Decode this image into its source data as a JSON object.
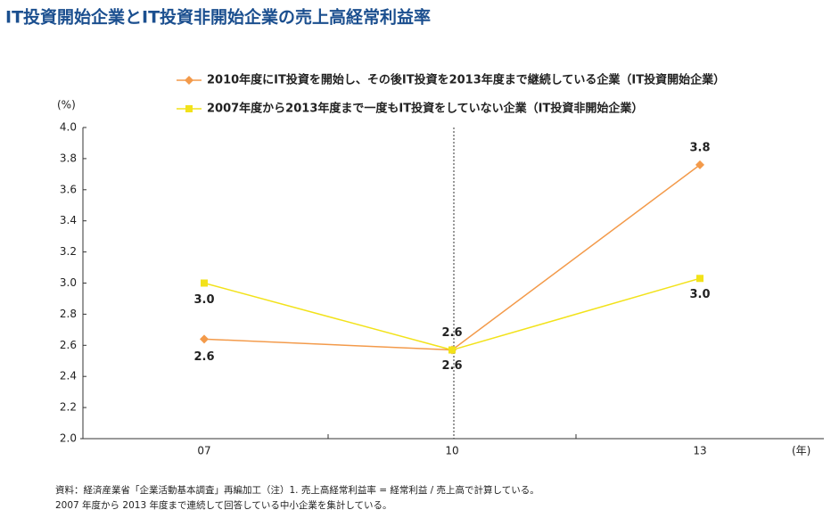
{
  "chart_data": {
    "type": "line",
    "title": "IT投資開始企業とIT投資非開始企業の売上高経常利益率",
    "y_label": "(%)",
    "x_label": "(年)",
    "categories": [
      "07",
      "10",
      "13"
    ],
    "series": [
      {
        "name": "2010年度にIT投資を開始し、その後IT投資を2013年度まで継続している企業（IT投資開始企業）",
        "color": "#f39a4a",
        "marker": "diamond",
        "values": [
          2.64,
          2.57,
          3.76
        ],
        "value_labels": [
          "2.6",
          "2.6",
          "3.8"
        ]
      },
      {
        "name": "2007年度から2013年度まで一度もIT投資をしていない企業（IT投資非開始企業）",
        "color": "#f2e21a",
        "marker": "square",
        "values": [
          3.0,
          2.57,
          3.03
        ],
        "value_labels": [
          "3.0",
          "2.6",
          "3.0"
        ]
      }
    ],
    "ylim": [
      2.0,
      4.0
    ],
    "yticks": [
      {
        "value": 2.0,
        "label": "2.0"
      },
      2.2,
      2.4,
      2.6,
      2.8,
      {
        "value": 3.0,
        "label": "3.0"
      },
      3.2,
      3.4,
      3.6,
      3.8,
      {
        "value": 4.0,
        "label": "4.0"
      }
    ],
    "notes": [
      "資料：経済産業省「企業活動基本調査」再編加工（注）1. 売上高経常利益率 = 経常利益 / 売上高で計算している。",
      "2007 年度から 2013 年度まで連続して回答している中小企業を集計している。"
    ]
  }
}
